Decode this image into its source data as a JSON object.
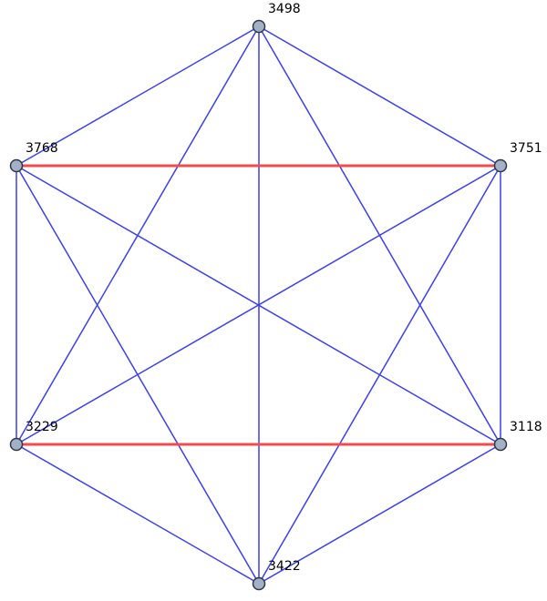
{
  "graph": {
    "colors": {
      "normal_edge": "#3b3ff2",
      "highlight_edge": "#f24b4b",
      "node_fill": "#a2b1c8",
      "node_stroke": "#2f3744"
    },
    "nodes": [
      {
        "id": "n3498",
        "label": "3498"
      },
      {
        "id": "n3768",
        "label": "3768"
      },
      {
        "id": "n3751",
        "label": "3751"
      },
      {
        "id": "n3229",
        "label": "3229"
      },
      {
        "id": "n3118",
        "label": "3118"
      },
      {
        "id": "n3422",
        "label": "3422"
      }
    ],
    "edges": [
      {
        "from": "n3498",
        "to": "n3768",
        "highlight": false
      },
      {
        "from": "n3498",
        "to": "n3751",
        "highlight": false
      },
      {
        "from": "n3498",
        "to": "n3229",
        "highlight": false
      },
      {
        "from": "n3498",
        "to": "n3118",
        "highlight": false
      },
      {
        "from": "n3498",
        "to": "n3422",
        "highlight": false
      },
      {
        "from": "n3768",
        "to": "n3751",
        "highlight": true
      },
      {
        "from": "n3768",
        "to": "n3229",
        "highlight": false
      },
      {
        "from": "n3768",
        "to": "n3118",
        "highlight": false
      },
      {
        "from": "n3768",
        "to": "n3422",
        "highlight": false
      },
      {
        "from": "n3751",
        "to": "n3229",
        "highlight": false
      },
      {
        "from": "n3751",
        "to": "n3118",
        "highlight": false
      },
      {
        "from": "n3751",
        "to": "n3422",
        "highlight": false
      },
      {
        "from": "n3229",
        "to": "n3118",
        "highlight": true
      },
      {
        "from": "n3229",
        "to": "n3422",
        "highlight": false
      },
      {
        "from": "n3118",
        "to": "n3422",
        "highlight": false
      }
    ]
  }
}
